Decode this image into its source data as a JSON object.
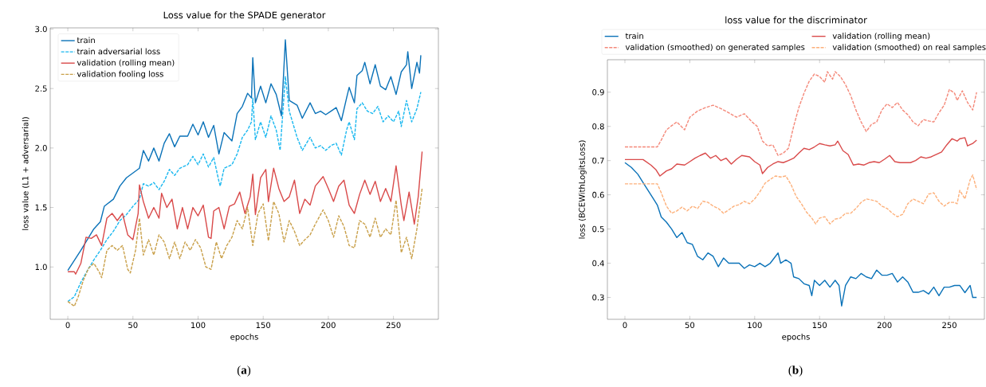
{
  "chart_data": [
    {
      "type": "line",
      "title": "Loss value for the SPADE generator",
      "xlabel": "epochs",
      "ylabel": "loss value (L1 + adversarial)",
      "annotations": [
        "(**a**)"
      ],
      "legend": "top left",
      "xlim": [
        -13.5,
        284.5
      ],
      "ylim": [
        0.56,
        3.01
      ],
      "xticks": [
        0,
        50,
        100,
        150,
        200,
        250
      ],
      "yticks": [
        {
          "value": 1,
          "label": "1.0"
        },
        1.5,
        {
          "value": 2,
          "label": "2.0"
        },
        2.5,
        {
          "value": 3,
          "label": "3.0"
        }
      ],
      "series": [
        {
          "name": "train",
          "color": "#0a72b8",
          "line_style": "solid",
          "x": [
            0,
            10,
            20,
            25,
            28,
            35,
            40,
            45,
            50,
            55,
            58,
            62,
            66,
            70,
            74,
            78,
            82,
            86,
            92,
            96,
            100,
            104,
            108,
            112,
            116,
            120,
            126,
            130,
            134,
            138,
            141,
            142,
            144,
            148,
            152,
            156,
            160,
            164,
            167,
            170,
            176,
            180,
            186,
            190,
            194,
            198,
            202,
            206,
            210,
            214,
            216,
            220,
            222,
            226,
            228,
            232,
            236,
            240,
            244,
            248,
            252,
            256,
            260,
            261,
            264,
            268,
            270,
            271
          ],
          "values": [
            0.97,
            1.14,
            1.32,
            1.38,
            1.51,
            1.57,
            1.68,
            1.75,
            1.79,
            1.83,
            1.98,
            1.89,
            2.0,
            1.89,
            2.04,
            2.12,
            2.01,
            2.1,
            2.1,
            2.2,
            2.11,
            2.22,
            2.09,
            2.19,
            1.95,
            2.13,
            2.06,
            2.29,
            2.35,
            2.46,
            2.42,
            2.76,
            2.38,
            2.52,
            2.38,
            2.54,
            2.45,
            2.27,
            2.91,
            2.4,
            2.36,
            2.25,
            2.38,
            2.29,
            2.31,
            2.28,
            2.31,
            2.34,
            2.23,
            2.42,
            2.51,
            2.38,
            2.61,
            2.65,
            2.72,
            2.54,
            2.7,
            2.52,
            2.49,
            2.6,
            2.45,
            2.64,
            2.7,
            2.81,
            2.5,
            2.72,
            2.63,
            2.78
          ]
        },
        {
          "name": "train adversarial loss",
          "color": "#1ab8f0",
          "line_style": "dashed",
          "x": [
            0,
            5,
            10,
            15,
            20,
            25,
            30,
            35,
            40,
            45,
            50,
            55,
            58,
            62,
            66,
            70,
            74,
            78,
            82,
            86,
            92,
            96,
            100,
            104,
            108,
            112,
            116,
            117,
            120,
            126,
            130,
            134,
            138,
            141,
            142,
            144,
            148,
            152,
            156,
            160,
            163,
            167,
            170,
            176,
            180,
            186,
            190,
            194,
            198,
            202,
            206,
            210,
            214,
            216,
            220,
            222,
            226,
            230,
            234,
            238,
            242,
            246,
            250,
            254,
            256,
            260,
            264,
            268,
            271
          ],
          "values": [
            0.71,
            0.75,
            0.87,
            0.97,
            1.06,
            1.14,
            1.23,
            1.3,
            1.39,
            1.44,
            1.51,
            1.57,
            1.7,
            1.68,
            1.71,
            1.65,
            1.72,
            1.82,
            1.77,
            1.83,
            1.86,
            1.93,
            1.86,
            1.95,
            1.84,
            1.92,
            1.72,
            1.68,
            1.83,
            1.86,
            1.95,
            2.09,
            2.15,
            2.22,
            2.42,
            2.07,
            2.22,
            2.09,
            2.27,
            2.15,
            1.98,
            2.6,
            2.31,
            2.09,
            1.98,
            2.09,
            2.0,
            2.02,
            1.98,
            2.02,
            2.04,
            1.94,
            2.15,
            2.22,
            2.07,
            2.33,
            2.38,
            2.31,
            2.29,
            2.35,
            2.22,
            2.27,
            2.22,
            2.31,
            2.18,
            2.4,
            2.22,
            2.33,
            2.47
          ]
        },
        {
          "name": "validation (rolling mean)",
          "color": "#d94a4a",
          "line_style": "solid",
          "x": [
            0,
            5,
            6,
            10,
            14,
            18,
            22,
            26,
            30,
            34,
            38,
            42,
            46,
            50,
            54,
            55,
            58,
            62,
            66,
            70,
            72,
            76,
            80,
            84,
            88,
            92,
            96,
            100,
            104,
            108,
            110,
            112,
            116,
            120,
            124,
            128,
            132,
            136,
            140,
            142,
            144,
            148,
            152,
            154,
            158,
            162,
            166,
            170,
            174,
            178,
            182,
            186,
            190,
            196,
            200,
            204,
            208,
            212,
            216,
            220,
            224,
            228,
            232,
            236,
            240,
            244,
            248,
            252,
            256,
            258,
            262,
            266,
            269,
            272
          ],
          "values": [
            0.96,
            0.96,
            0.94,
            1.03,
            1.25,
            1.24,
            1.27,
            1.18,
            1.41,
            1.45,
            1.39,
            1.45,
            1.27,
            1.23,
            1.45,
            1.69,
            1.55,
            1.41,
            1.5,
            1.41,
            1.62,
            1.5,
            1.57,
            1.32,
            1.5,
            1.32,
            1.5,
            1.43,
            1.52,
            1.25,
            1.24,
            1.47,
            1.5,
            1.32,
            1.51,
            1.53,
            1.63,
            1.45,
            1.59,
            1.78,
            1.44,
            1.75,
            1.82,
            1.55,
            1.83,
            1.66,
            1.55,
            1.59,
            1.73,
            1.45,
            1.57,
            1.52,
            1.68,
            1.76,
            1.66,
            1.55,
            1.68,
            1.73,
            1.52,
            1.45,
            1.61,
            1.73,
            1.61,
            1.72,
            1.55,
            1.66,
            1.55,
            1.85,
            1.52,
            1.39,
            1.63,
            1.36,
            1.59,
            1.97
          ]
        },
        {
          "name": "validation fooling loss",
          "color": "#c9a04a",
          "line_style": "dashed",
          "x": [
            0,
            5,
            8,
            12,
            16,
            20,
            24,
            26,
            30,
            34,
            38,
            42,
            46,
            48,
            52,
            55,
            58,
            62,
            66,
            70,
            74,
            78,
            82,
            86,
            90,
            94,
            98,
            102,
            106,
            110,
            114,
            118,
            122,
            126,
            130,
            134,
            138,
            142,
            146,
            150,
            154,
            158,
            162,
            166,
            170,
            174,
            178,
            182,
            186,
            190,
            196,
            200,
            204,
            208,
            212,
            216,
            220,
            224,
            228,
            232,
            236,
            240,
            244,
            248,
            252,
            256,
            260,
            264,
            268,
            272
          ],
          "values": [
            0.71,
            0.67,
            0.75,
            0.89,
            0.99,
            1.03,
            0.96,
            0.91,
            1.14,
            1.18,
            1.14,
            1.18,
            0.98,
            0.95,
            1.14,
            1.41,
            1.1,
            1.23,
            1.1,
            1.27,
            1.21,
            1.07,
            1.21,
            1.07,
            1.21,
            1.14,
            1.23,
            1.16,
            1.0,
            0.98,
            1.21,
            1.07,
            1.18,
            1.25,
            1.39,
            1.32,
            1.5,
            1.18,
            1.45,
            1.53,
            1.22,
            1.55,
            1.45,
            1.21,
            1.39,
            1.3,
            1.18,
            1.23,
            1.27,
            1.36,
            1.48,
            1.39,
            1.25,
            1.43,
            1.34,
            1.18,
            1.16,
            1.39,
            1.36,
            1.25,
            1.41,
            1.25,
            1.32,
            1.27,
            1.56,
            1.12,
            1.25,
            1.07,
            1.32,
            1.66
          ]
        }
      ]
    },
    {
      "type": "line",
      "title": "loss value for the discriminator",
      "xlabel": "epochs",
      "ylabel": "loss (BCEWithLogitsLoss)",
      "annotations": [
        "(**b**)"
      ],
      "legend": "top",
      "xlim": [
        -13.5,
        277
      ],
      "ylim": [
        0.236,
        0.995
      ],
      "xticks": [
        0,
        50,
        100,
        150,
        200,
        250
      ],
      "yticks": [
        0.3,
        0.4,
        0.5,
        0.6,
        0.7,
        0.8,
        0.9
      ],
      "series": [
        {
          "name": "train",
          "color": "#0a72b8",
          "line_style": "solid",
          "x": [
            0,
            5,
            10,
            15,
            20,
            25,
            28,
            32,
            36,
            40,
            44,
            48,
            52,
            56,
            60,
            64,
            68,
            72,
            76,
            80,
            84,
            88,
            92,
            96,
            100,
            104,
            108,
            112,
            116,
            118,
            120,
            124,
            128,
            130,
            134,
            138,
            142,
            144,
            146,
            150,
            154,
            158,
            162,
            165,
            167,
            170,
            174,
            178,
            182,
            186,
            190,
            194,
            198,
            202,
            206,
            210,
            214,
            218,
            222,
            226,
            230,
            234,
            238,
            242,
            246,
            250,
            254,
            258,
            262,
            266,
            268,
            271
          ],
          "values": [
            0.694,
            0.68,
            0.66,
            0.63,
            0.6,
            0.57,
            0.535,
            0.52,
            0.5,
            0.475,
            0.49,
            0.46,
            0.455,
            0.42,
            0.41,
            0.43,
            0.42,
            0.39,
            0.415,
            0.4,
            0.4,
            0.4,
            0.385,
            0.395,
            0.39,
            0.4,
            0.39,
            0.4,
            0.42,
            0.43,
            0.4,
            0.41,
            0.4,
            0.36,
            0.355,
            0.34,
            0.335,
            0.305,
            0.35,
            0.335,
            0.35,
            0.33,
            0.35,
            0.335,
            0.275,
            0.335,
            0.36,
            0.355,
            0.37,
            0.36,
            0.355,
            0.38,
            0.365,
            0.365,
            0.37,
            0.345,
            0.36,
            0.345,
            0.315,
            0.315,
            0.32,
            0.31,
            0.33,
            0.305,
            0.33,
            0.33,
            0.335,
            0.335,
            0.314,
            0.335,
            0.3,
            0.3
          ]
        },
        {
          "name": "validation (rolling mean)",
          "color": "#d94a4a",
          "line_style": "solid",
          "x": [
            0,
            14,
            20,
            24,
            27,
            32,
            36,
            40,
            46,
            50,
            54,
            58,
            62,
            66,
            70,
            74,
            78,
            82,
            86,
            90,
            96,
            100,
            104,
            106,
            110,
            114,
            118,
            122,
            126,
            130,
            134,
            138,
            142,
            146,
            150,
            154,
            158,
            162,
            164,
            168,
            172,
            176,
            180,
            184,
            188,
            192,
            196,
            200,
            204,
            208,
            212,
            216,
            220,
            224,
            228,
            232,
            236,
            240,
            244,
            248,
            252,
            256,
            258,
            262,
            264,
            268,
            271
          ],
          "values": [
            0.703,
            0.703,
            0.687,
            0.673,
            0.655,
            0.67,
            0.676,
            0.69,
            0.687,
            0.697,
            0.707,
            0.715,
            0.722,
            0.707,
            0.715,
            0.7,
            0.707,
            0.69,
            0.704,
            0.715,
            0.711,
            0.697,
            0.687,
            0.662,
            0.68,
            0.69,
            0.697,
            0.694,
            0.7,
            0.707,
            0.722,
            0.736,
            0.732,
            0.74,
            0.75,
            0.746,
            0.743,
            0.746,
            0.757,
            0.729,
            0.718,
            0.687,
            0.69,
            0.687,
            0.694,
            0.697,
            0.694,
            0.704,
            0.715,
            0.697,
            0.694,
            0.694,
            0.694,
            0.7,
            0.711,
            0.707,
            0.711,
            0.718,
            0.725,
            0.746,
            0.764,
            0.757,
            0.764,
            0.767,
            0.743,
            0.75,
            0.76
          ]
        },
        {
          "name": "validation (smoothed) on generated samples",
          "color": "#f4897a",
          "line_style": "dashed",
          "x": [
            0,
            25,
            28,
            32,
            36,
            40,
            46,
            50,
            56,
            62,
            68,
            74,
            80,
            86,
            92,
            98,
            102,
            106,
            110,
            114,
            118,
            122,
            126,
            130,
            134,
            138,
            142,
            146,
            150,
            154,
            156,
            160,
            162,
            166,
            170,
            174,
            178,
            182,
            186,
            190,
            194,
            198,
            202,
            206,
            210,
            214,
            218,
            222,
            226,
            230,
            234,
            238,
            242,
            246,
            250,
            254,
            256,
            260,
            264,
            268,
            271
          ],
          "values": [
            0.74,
            0.74,
            0.76,
            0.79,
            0.802,
            0.813,
            0.79,
            0.827,
            0.845,
            0.855,
            0.862,
            0.852,
            0.84,
            0.827,
            0.837,
            0.813,
            0.8,
            0.757,
            0.743,
            0.746,
            0.715,
            0.722,
            0.736,
            0.8,
            0.855,
            0.897,
            0.932,
            0.953,
            0.946,
            0.929,
            0.96,
            0.938,
            0.96,
            0.946,
            0.922,
            0.89,
            0.848,
            0.813,
            0.785,
            0.806,
            0.813,
            0.848,
            0.866,
            0.855,
            0.87,
            0.848,
            0.834,
            0.813,
            0.802,
            0.82,
            0.816,
            0.813,
            0.84,
            0.862,
            0.908,
            0.897,
            0.876,
            0.904,
            0.87,
            0.848,
            0.9
          ]
        },
        {
          "name": "validation (smoothed) on real samples",
          "color": "#fdb07a",
          "line_style": "dashed",
          "x": [
            0,
            25,
            28,
            32,
            36,
            40,
            44,
            48,
            52,
            56,
            60,
            64,
            68,
            72,
            76,
            80,
            84,
            88,
            92,
            96,
            100,
            104,
            108,
            112,
            116,
            120,
            124,
            128,
            132,
            136,
            140,
            144,
            147,
            150,
            154,
            158,
            162,
            166,
            170,
            174,
            178,
            182,
            186,
            190,
            194,
            198,
            202,
            206,
            210,
            214,
            218,
            222,
            226,
            230,
            234,
            238,
            242,
            246,
            250,
            254,
            256,
            258,
            262,
            266,
            268,
            271
          ],
          "values": [
            0.632,
            0.632,
            0.606,
            0.567,
            0.546,
            0.553,
            0.564,
            0.553,
            0.567,
            0.56,
            0.581,
            0.578,
            0.567,
            0.56,
            0.546,
            0.556,
            0.567,
            0.571,
            0.581,
            0.574,
            0.588,
            0.609,
            0.634,
            0.645,
            0.655,
            0.652,
            0.655,
            0.63,
            0.595,
            0.574,
            0.549,
            0.532,
            0.515,
            0.532,
            0.536,
            0.515,
            0.529,
            0.532,
            0.546,
            0.546,
            0.56,
            0.578,
            0.588,
            0.585,
            0.581,
            0.567,
            0.56,
            0.546,
            0.536,
            0.543,
            0.574,
            0.588,
            0.581,
            0.574,
            0.602,
            0.606,
            0.581,
            0.567,
            0.578,
            0.578,
            0.574,
            0.613,
            0.588,
            0.644,
            0.658,
            0.616
          ]
        }
      ]
    }
  ]
}
